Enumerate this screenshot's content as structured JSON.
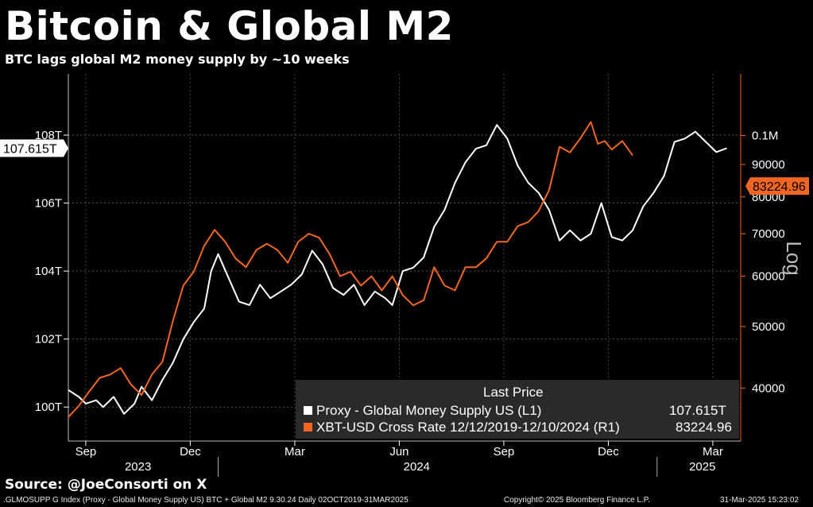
{
  "header": {
    "title": "Bitcoin & Global M2",
    "subtitle": "BTC lags global M2 money supply by ~10 weeks"
  },
  "footer": {
    "source": "Source: @JoeConsorti on X",
    "index_info": ".GLMOSUPP G Index (Proxy - Global Money Supply US) BTC + Global M2 9.30.24  Daily 02OCT2019-31MAR2025",
    "copyright": "Copyright© 2025 Bloomberg Finance L.P.",
    "timestamp": "31-Mar-2025 15:23:02"
  },
  "legend": {
    "header": "Last Price",
    "rows": [
      {
        "label": "Proxy - Global Money Supply US  (L1)",
        "value": "107.615T",
        "color": "#ffffff"
      },
      {
        "label": "XBT-USD Cross Rate 12/12/2019-12/10/2024  (R1)",
        "value": "83224.96",
        "color": "#f26522"
      }
    ]
  },
  "chart_data": {
    "type": "line",
    "title": "Bitcoin & Global M2",
    "subtitle": "BTC lags global M2 money supply by ~10 weeks",
    "x_tick_labels": [
      "Sep",
      "Dec",
      "Mar",
      "Jun",
      "Sep",
      "Dec",
      "Mar"
    ],
    "x_tick_t": [
      0.5,
      3.5,
      6.5,
      9.5,
      12.5,
      15.5,
      18.5
    ],
    "x_year_labels": [
      {
        "label": "2023",
        "t": 2.0
      },
      {
        "label": "2024",
        "t": 10.0
      },
      {
        "label": "2025",
        "t": 18.2
      }
    ],
    "x_range_months_since_aug2023": [
      0,
      19.3
    ],
    "left_axis": {
      "ticks": [
        "100T",
        "102T",
        "104T",
        "106T",
        "108T"
      ],
      "tick_values": [
        100,
        102,
        104,
        106,
        108
      ],
      "range": [
        99.0,
        109.8
      ],
      "last_value_label": "107.615T",
      "last_value": 107.615
    },
    "right_axis": {
      "scale": "log",
      "label": "Log",
      "ticks": [
        "40000",
        "50000",
        "60000",
        "70000",
        "80000",
        "90000",
        "0.1M"
      ],
      "tick_values": [
        40000,
        50000,
        60000,
        70000,
        80000,
        90000,
        100000
      ],
      "range": [
        33000,
        125000
      ],
      "last_value_label": "83224.96",
      "last_value": 83224.96
    },
    "series": [
      {
        "name": "Proxy - Global Money Supply US (L1)",
        "axis": "left",
        "color": "#ffffff",
        "t": [
          0.0,
          0.3,
          0.5,
          0.8,
          1.0,
          1.3,
          1.6,
          1.9,
          2.1,
          2.4,
          2.7,
          3.0,
          3.3,
          3.6,
          3.9,
          4.1,
          4.3,
          4.6,
          4.9,
          5.2,
          5.5,
          5.8,
          6.1,
          6.4,
          6.7,
          7.0,
          7.3,
          7.6,
          7.9,
          8.2,
          8.5,
          8.8,
          9.1,
          9.3,
          9.6,
          9.9,
          10.2,
          10.5,
          10.8,
          11.1,
          11.4,
          11.7,
          12.0,
          12.3,
          12.6,
          12.9,
          13.2,
          13.5,
          13.8,
          14.1,
          14.4,
          14.7,
          15.0,
          15.3,
          15.6,
          15.9,
          16.2,
          16.5,
          16.8,
          17.1,
          17.4,
          17.7,
          18.0,
          18.3,
          18.6,
          18.9
        ],
        "values": [
          100.5,
          100.3,
          100.1,
          100.2,
          100.0,
          100.3,
          99.8,
          100.1,
          100.6,
          100.2,
          100.8,
          101.3,
          102.0,
          102.5,
          102.9,
          104.0,
          104.5,
          103.8,
          103.1,
          103.0,
          103.6,
          103.2,
          103.4,
          103.6,
          103.9,
          104.6,
          104.2,
          103.5,
          103.3,
          103.6,
          103.0,
          103.4,
          103.2,
          103.0,
          104.0,
          104.1,
          104.4,
          105.3,
          105.8,
          106.6,
          107.2,
          107.6,
          107.7,
          108.3,
          107.9,
          107.1,
          106.6,
          106.3,
          105.8,
          104.9,
          105.2,
          104.9,
          105.1,
          106.0,
          105.0,
          104.9,
          105.2,
          105.9,
          106.3,
          106.8,
          107.8,
          107.9,
          108.1,
          107.8,
          107.5,
          107.615
        ]
      },
      {
        "name": "XBT-USD Cross Rate 12/12/2019-12/10/2024 (R1)",
        "axis": "right",
        "color": "#f26522",
        "t": [
          0.0,
          0.3,
          0.6,
          0.9,
          1.2,
          1.5,
          1.8,
          2.1,
          2.4,
          2.7,
          3.0,
          3.3,
          3.6,
          3.9,
          4.2,
          4.5,
          4.8,
          5.1,
          5.4,
          5.7,
          6.0,
          6.3,
          6.6,
          6.9,
          7.2,
          7.5,
          7.8,
          8.1,
          8.4,
          8.7,
          9.0,
          9.3,
          9.6,
          9.9,
          10.2,
          10.5,
          10.8,
          11.1,
          11.4,
          11.7,
          12.0,
          12.3,
          12.6,
          12.9,
          13.2,
          13.5,
          13.8,
          14.1,
          14.4,
          14.7,
          15.0,
          15.2,
          15.4,
          15.6,
          15.9,
          16.2
        ],
        "values": [
          36000,
          37500,
          39500,
          41500,
          42000,
          43000,
          40500,
          39000,
          42000,
          44000,
          51000,
          58000,
          61000,
          67000,
          71000,
          68000,
          64000,
          62000,
          66000,
          67500,
          66000,
          63000,
          68000,
          70000,
          69000,
          65000,
          60000,
          61000,
          58000,
          60000,
          57000,
          60000,
          56000,
          54000,
          55000,
          62000,
          58000,
          57000,
          62000,
          62000,
          64000,
          68000,
          68000,
          72000,
          73000,
          76000,
          82000,
          96000,
          94000,
          99000,
          105000,
          97000,
          98000,
          95000,
          98000,
          93000
        ]
      }
    ]
  }
}
